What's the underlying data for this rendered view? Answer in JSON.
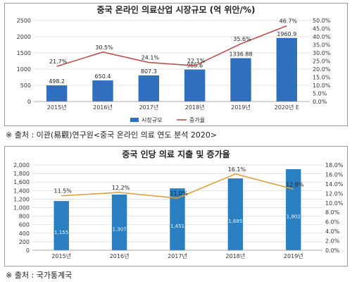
{
  "colors": {
    "bar": "#2f6fbd",
    "line1": "#c0504d",
    "line2": "#e0a03a",
    "grid": "#d6d6d6",
    "bar2": "#2a7fc1"
  },
  "chart_data": [
    {
      "type": "bar",
      "title": "중국 온라인 의료산업 시장규모 (억 위안/%)",
      "categories": [
        "2015년",
        "2016년",
        "2017년",
        "2018년",
        "2019년",
        "2020년 E"
      ],
      "series": [
        {
          "name": "시장규모",
          "type": "bar",
          "axis": "left",
          "values": [
            498.2,
            650.4,
            807.3,
            985.6,
            1336.88,
            1960.9
          ],
          "labels": [
            "498.2",
            "650.4",
            "807.3",
            "985.6",
            "1336.88",
            "1960.9"
          ]
        },
        {
          "name": "증가율",
          "type": "line",
          "axis": "right",
          "values": [
            21.7,
            30.5,
            24.1,
            22.1,
            35.6,
            46.7
          ],
          "labels": [
            "21.7%",
            "30.5%",
            "24.1%",
            "22.1%",
            "35.6%",
            "46.7%"
          ]
        }
      ],
      "ylim_left": [
        0,
        2500
      ],
      "yticks_left": [
        "0",
        "500",
        "1000",
        "1500",
        "2000",
        "2500"
      ],
      "ylim_right": [
        0,
        50
      ],
      "yticks_right": [
        "0.0%",
        "5.0%",
        "10.0%",
        "15.0%",
        "20.0%",
        "25.0%",
        "30.0%",
        "35.0%",
        "40.0%",
        "45.0%",
        "50.0%"
      ],
      "grid": true,
      "legend": "bottom"
    },
    {
      "type": "bar",
      "title": "중국 인당 의료 지출 및 증가율",
      "categories": [
        "2015년",
        "2016년",
        "2017년",
        "2018년",
        "2019년"
      ],
      "series": [
        {
          "type": "bar",
          "axis": "left",
          "values": [
            1155,
            1307,
            1451,
            1685,
            1902
          ],
          "labels": [
            "1,155",
            "1,307",
            "1,451",
            "1,685",
            "1,902"
          ]
        },
        {
          "type": "line",
          "axis": "right",
          "values": [
            11.5,
            12.2,
            11.0,
            16.1,
            12.9
          ],
          "labels": [
            "11.5%",
            "12.2%",
            "11.0%",
            "16.1%",
            "12.9%"
          ]
        }
      ],
      "ylim_left": [
        0,
        2000
      ],
      "yticks_left": [
        "0",
        "200",
        "400",
        "600",
        "800",
        "1,000",
        "1,200",
        "1,400",
        "1,600",
        "1,800",
        "2,000"
      ],
      "ylim_right": [
        0,
        18
      ],
      "yticks_right": [
        "0.0%",
        "2.0%",
        "4.0%",
        "6.0%",
        "8.0%",
        "10.0%",
        "12.0%",
        "14.0%",
        "16.0%",
        "18.0%"
      ],
      "grid": true,
      "legend": "none"
    }
  ],
  "sources": {
    "source1": "※ 출처 : 이관(易觀)연구원<중국 온라인 의료 연도 분석 2020>",
    "source2": "※ 출처 : 국가통계국"
  }
}
